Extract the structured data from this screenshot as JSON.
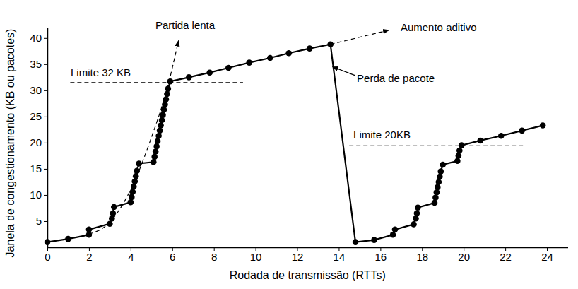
{
  "chart_data": {
    "type": "line",
    "x_label": "Rodada de transmissão (RTTs)",
    "y_label": "Janela de congestionamento (KB ou pacotes)",
    "xlim": [
      0,
      25
    ],
    "ylim": [
      0,
      42
    ],
    "xticks": [
      0,
      2,
      4,
      6,
      8,
      10,
      12,
      14,
      16,
      18,
      20,
      22,
      24
    ],
    "yticks": [
      5,
      10,
      15,
      20,
      25,
      30,
      35,
      40
    ],
    "grid": false,
    "series": [
      {
        "color": "#000000",
        "marker": "circle",
        "line_style": "solid",
        "x": [
          0,
          1,
          2,
          2,
          3,
          3.1,
          3.15,
          3.2,
          4,
          4.05,
          4.1,
          4.15,
          4.2,
          4.25,
          4.3,
          4.4,
          5.1,
          5.15,
          5.2,
          5.25,
          5.3,
          5.35,
          5.4,
          5.45,
          5.5,
          5.55,
          5.6,
          5.65,
          5.7,
          5.75,
          5.8,
          5.9,
          6.8,
          7.8,
          8.7,
          9.7,
          10.7,
          11.6,
          12.6,
          13.6,
          14.8,
          15.7,
          16.6,
          16.7,
          17.6,
          17.7,
          17.75,
          17.8,
          18.6,
          18.65,
          18.7,
          18.75,
          18.8,
          18.85,
          18.9,
          19,
          19.7,
          19.75,
          19.8,
          19.9,
          20.8,
          21.8,
          22.8,
          23.8
        ],
        "values": [
          1,
          1.6,
          2.4,
          3.4,
          4.5,
          5.5,
          6.5,
          7.7,
          8.6,
          9.6,
          10.6,
          11.6,
          12.6,
          13.6,
          14.6,
          16,
          16.3,
          17.3,
          18.3,
          19.3,
          20.3,
          21.3,
          22.3,
          23.3,
          24.3,
          25.3,
          26.3,
          27.3,
          28.3,
          29.3,
          30.3,
          31.7,
          32.5,
          33.4,
          34.3,
          35.3,
          36.2,
          37.1,
          38,
          38.8,
          1,
          1.4,
          2.4,
          3.4,
          4.4,
          5.5,
          6.5,
          7.6,
          8.5,
          9.5,
          10.5,
          11.5,
          12.5,
          13.5,
          14.5,
          15.8,
          16.5,
          17.5,
          18.5,
          19.5,
          20.4,
          21.3,
          22.3,
          23.3
        ]
      },
      {
        "color": "#000000",
        "marker": "arrow",
        "line_style": "dashed",
        "x": [
          2,
          3,
          4,
          5,
          5.8,
          6.3
        ],
        "values": [
          2.5,
          4.8,
          11,
          21,
          31,
          39.5
        ]
      },
      {
        "color": "#000000",
        "marker": "arrow",
        "line_style": "dashed",
        "x": [
          13.6,
          16.4
        ],
        "values": [
          38.8,
          41.5
        ]
      },
      {
        "color": "#000000",
        "marker": "none",
        "line_style": "dashed",
        "x": [
          1.1,
          9.4
        ],
        "values": [
          31.5,
          31.5
        ]
      },
      {
        "color": "#000000",
        "marker": "none",
        "line_style": "dashed",
        "x": [
          14.5,
          23
        ],
        "values": [
          19.4,
          19.4
        ]
      }
    ],
    "annotations": [
      {
        "text": "Partida lenta",
        "x": 5.19,
        "y": 42.2
      },
      {
        "text": "Aumento aditivo",
        "x": 16.97,
        "y": 41.9
      },
      {
        "text": "Perda de pacote",
        "x": 14.87,
        "y": 32.2,
        "arrow_to": [
          13.7,
          34.5
        ]
      },
      {
        "text": "Limite 32 KB",
        "x": 1.12,
        "y": 33.2
      },
      {
        "text": "Limite 20KB",
        "x": 14.7,
        "y": 21.4
      }
    ]
  }
}
